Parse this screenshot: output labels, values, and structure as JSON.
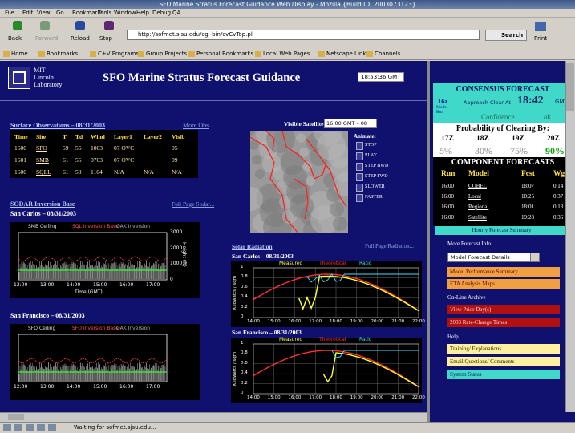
{
  "window": {
    "title": "SFO Marine Stratus Forecast Guidance Web Display - Mozilla {Build ID: 2003073123}",
    "menu": [
      "File",
      "Edit",
      "View",
      "Go",
      "Bookmarks",
      "Tools",
      "Window",
      "Help",
      "Debug",
      "QA"
    ],
    "toolbar": [
      "Back",
      "Forward",
      "Reload",
      "Stop"
    ],
    "url": "http://sofmet.sjsu.edu/cgi-bin/cvCvTop.pl",
    "search": "Search",
    "print": "Print",
    "bookmarks": [
      "Home",
      "Bookmarks",
      "C+V Programs",
      "Group Projects",
      "Personal Bookmarks",
      "Local Web Pages",
      "Netscape Links",
      "Channels"
    ],
    "status": "Waiting for sofmet.sjsu.edu..."
  },
  "header": {
    "logo": [
      "MIT",
      "Lincoln",
      "Laboratory"
    ],
    "title": "SFO Marine Stratus Forecast Guidance",
    "time": "18:53:36 GMT"
  },
  "surface": {
    "title": "Surface Observations – 08/31/2003",
    "link": "More Obs",
    "columns": [
      "Time",
      "Site",
      "T",
      "Td",
      "Wind",
      "Layer1",
      "Layer2",
      "Visib"
    ],
    "rows": [
      [
        "1600",
        "SFO",
        "59",
        "55",
        "1003",
        "07 OVC",
        null,
        "05"
      ],
      [
        "1601",
        "SMB",
        "61",
        "55",
        "0703",
        "07 OVC",
        null,
        "09"
      ],
      [
        "1600",
        "SQLL",
        "61",
        "58",
        "1104",
        "N/A",
        "N/A",
        "N/A"
      ]
    ]
  },
  "sodar": {
    "title": "SODAR Inversion Base",
    "link": "Full Page Sodar...",
    "plots": [
      {
        "site": "San Carlos – 08/31/2003",
        "legend": [
          "SMB Ceiling",
          "SQL Inversion Base",
          "OAK Inversion"
        ],
        "y_label": "Height (ft)",
        "yticks": [
          "3000",
          "2000",
          "1000",
          "0"
        ],
        "xticks": [
          "12:00",
          "13:00",
          "14:00",
          "15:00",
          "16:00",
          "17:00"
        ],
        "x_label": "Time (GMT)"
      },
      {
        "site": "San Francisco – 08/31/2003",
        "legend": [
          "SFO Ceiling",
          "SFO Inversion Base",
          "OAK Inversion"
        ],
        "xticks": [
          "12:00",
          "13:00",
          "14:00",
          "15:00",
          "16:00",
          "17:00"
        ]
      }
    ]
  },
  "satellite": {
    "title": "Visible Satellite",
    "time": "16:00 GMT – 08",
    "animate": "Animate:",
    "buttons": [
      "STOP",
      "PLAY",
      "STEP BWD",
      "STEP FWD",
      "SLOWER",
      "FASTER"
    ]
  },
  "solar": {
    "title": "Solar Radiation",
    "link": "Full Page Radiation...",
    "plots": [
      {
        "site": "San Carlos – 08/31/2003",
        "legend": [
          "Measured",
          "Theoretical",
          "Ratio"
        ],
        "y_label": "Kilowatts / sqm",
        "yticks": [
          "1",
          "0.8",
          "0.6",
          "0.4",
          "0.2",
          "0"
        ],
        "xticks": [
          "14:00",
          "15:00",
          "16:00",
          "17:00",
          "18:00",
          "19:00",
          "20:00",
          "21:00",
          "22:00"
        ]
      },
      {
        "site": "San Francisco – 08/31/2003",
        "legend": [
          "Measured",
          "Theoretical",
          "Ratio"
        ],
        "y_label": "Kilowatts / sqm",
        "yticks": [
          "1",
          "0.8",
          "0.6",
          "0.4",
          "0.2",
          "0"
        ],
        "xticks": [
          "14:00",
          "15:00",
          "16:00",
          "17:00",
          "18:00",
          "19:00",
          "20:00",
          "21:00",
          "22:00"
        ]
      }
    ]
  },
  "consensus": {
    "title": "CONSENSUS FORECAST",
    "run": "16z",
    "run_label": "Model Run",
    "approach": "Approach Clear At",
    "clear_time": "18:42",
    "gmt": "GMT",
    "confidence": "Confidence",
    "confidence_value": "ok",
    "probability_title": "Probability of Clearing By:",
    "probability_headers": [
      "17Z",
      "18Z",
      "19Z",
      "20Z"
    ],
    "probability_values": [
      "5%",
      "30%",
      "75%",
      "90%"
    ],
    "component_title": "COMPONENT FORECASTS",
    "component_headers": [
      "Run",
      "Model",
      "Fcst",
      "Wgt"
    ],
    "component_rows": [
      [
        "16:00",
        "COBEL",
        "18:07",
        "0.14"
      ],
      [
        "16:00",
        "Local",
        "18:25",
        "0.37"
      ],
      [
        "16:00",
        "Regional",
        "18:01",
        "0.13"
      ],
      [
        "16:00",
        "Satellite",
        "19:28",
        "0.36"
      ]
    ],
    "hourly": "Hourly Forecast Summary"
  },
  "links": {
    "more_title": "More Forecast Info",
    "select": "Model Forecast Details",
    "more": [
      "Model Performance Summary",
      "ETA Analysis Maps"
    ],
    "archive_title": "On-Line Archive",
    "archive": [
      "View Prior Day(s)",
      "2003 Rate-Change Times"
    ],
    "help_title": "Help",
    "help": [
      "Training/ Explanations",
      "Email Questions/ Comments",
      "System Status"
    ]
  }
}
